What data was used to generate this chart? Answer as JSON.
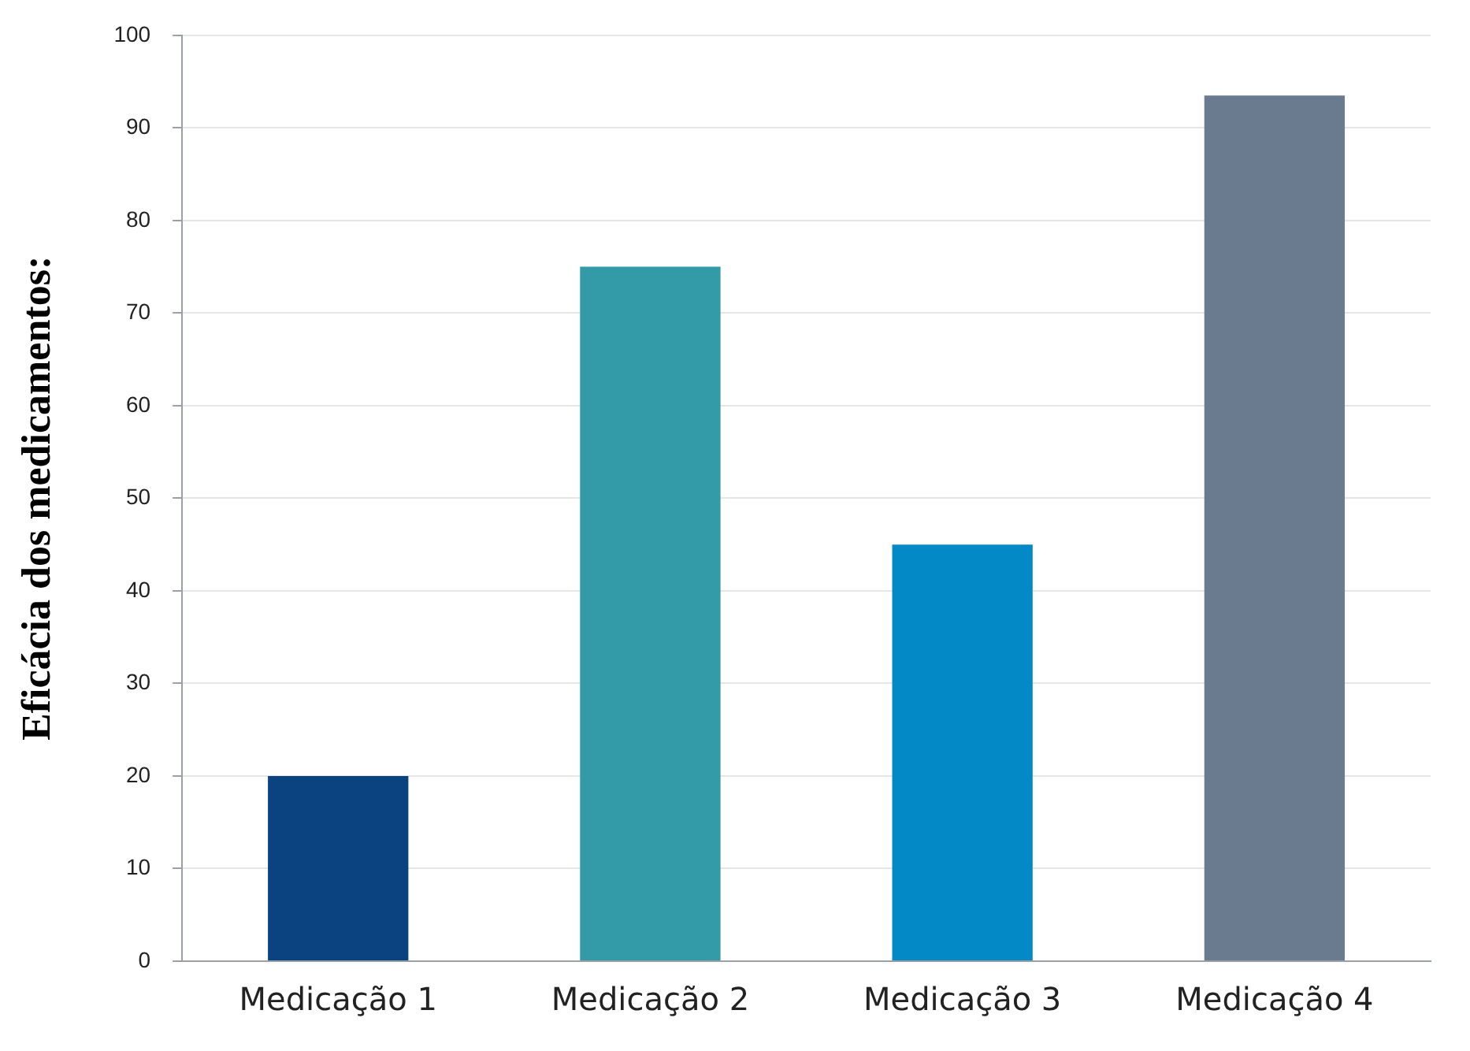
{
  "chart_data": {
    "type": "bar",
    "ylabel": "Eficácia dos medicamentos:",
    "categories": [
      "Medicação 1",
      "Medicação 2",
      "Medicação 3",
      "Medicação 4"
    ],
    "values": [
      20,
      75,
      45,
      93.5
    ],
    "colors": [
      "#0b4380",
      "#339ba8",
      "#0389c6",
      "#6a7a8f"
    ],
    "ylim": [
      0,
      100
    ],
    "yticks": [
      0,
      10,
      20,
      30,
      40,
      50,
      60,
      70,
      80,
      90,
      100
    ],
    "grid": "y",
    "legend": false
  }
}
